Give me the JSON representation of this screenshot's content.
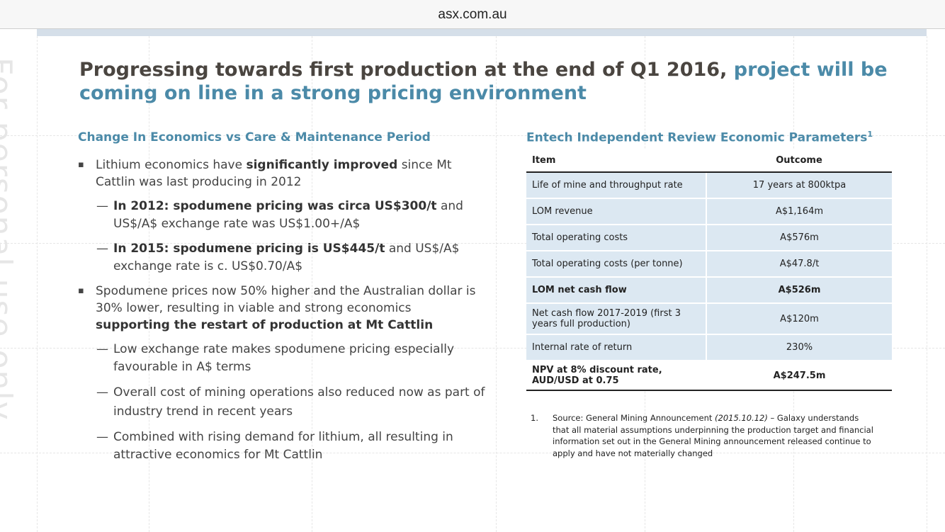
{
  "browser": {
    "url": "asx.com.au"
  },
  "watermark": {
    "text": "For personal use only"
  },
  "title": {
    "part1": "Progressing towards first production at the end of Q1 2016, ",
    "part2": "project will be coming on line in a strong pricing environment"
  },
  "left": {
    "heading": "Change In Economics vs Care & Maintenance Period",
    "bullet_mark": "▪",
    "dash_mark": "—",
    "b1": {
      "pre": "Lithium economics have ",
      "bold": "significantly improved",
      "post": " since Mt Cattlin was last producing in 2012"
    },
    "s1": {
      "bold": "In 2012: spodumene pricing was circa US$300/t",
      "post": " and US$/A$ exchange rate was US$1.00+/A$"
    },
    "s2": {
      "bold": "In 2015: spodumene pricing is US$445/t",
      "post": " and US$/A$ exchange rate is c. US$0.70/A$"
    },
    "b2": {
      "pre": "Spodumene prices now 50% higher and the Australian dollar is 30% lower, resulting in viable and strong economics ",
      "bold": "supporting the restart of production at Mt Cattlin"
    },
    "s3": "Low exchange rate makes spodumene pricing especially favourable in A$ terms",
    "s4": "Overall cost of mining operations also reduced now as part of industry trend in recent years",
    "s5": "Combined with rising demand for lithium, all resulting in attractive economics for Mt Cattlin"
  },
  "right": {
    "heading": "Entech Independent Review Economic Parameters",
    "heading_sup": "1",
    "table": {
      "col_item": "Item",
      "col_outcome": "Outcome",
      "rows": [
        {
          "item": "Life of mine and throughput rate",
          "outcome": "17 years at 800ktpa"
        },
        {
          "item": "LOM revenue",
          "outcome": "A$1,164m"
        },
        {
          "item": "Total operating costs",
          "outcome": "A$576m"
        },
        {
          "item": "Total operating costs (per tonne)",
          "outcome": "A$47.8/t"
        },
        {
          "item": "LOM net cash flow",
          "outcome": "A$526m"
        },
        {
          "item": "Net cash flow 2017-2019 (first 3 years full production)",
          "outcome": "A$120m"
        },
        {
          "item": "Internal rate of return",
          "outcome": "230%"
        },
        {
          "item": "NPV at 8% discount rate, AUD/USD at 0.75",
          "outcome": "A$247.5m"
        }
      ]
    },
    "footnote": {
      "num": "1.",
      "pre": "Source: General Mining Announcement ",
      "italic": "(2015.10.12)",
      "post": " – Galaxy understands that all material assumptions underpinning the production target and financial information set out in the General Mining announcement released continue to apply and have not materially changed"
    }
  }
}
